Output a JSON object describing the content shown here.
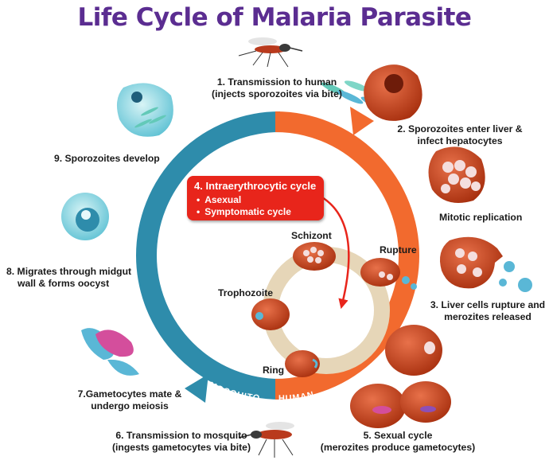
{
  "title": "Life Cycle of Malaria Parasite",
  "ring_labels": {
    "mosquito_top": "MOSQUITO",
    "human_top": "HUMAN",
    "mosquito_bottom": "MOSQUITO",
    "human_bottom": "HUMAN"
  },
  "steps": {
    "s1": {
      "line1": "1. Transmission to human",
      "line2": "(injects sporozoites via bite)"
    },
    "s2": {
      "line1": "2. Sporozoites enter liver &",
      "line2": "infect hepatocytes"
    },
    "mitotic": "Mitotic replication",
    "s3": {
      "line1": "3. Liver cells rupture and",
      "line2": "merozites released"
    },
    "s5": {
      "line1": "5. Sexual cycle",
      "line2": "(merozites produce gametocytes)"
    },
    "s6": {
      "line1": "6. Transmission to mosquito",
      "line2": "(ingests gametocytes via bite)"
    },
    "s7": {
      "line1": "7.Gametocytes mate &",
      "line2": "undergo meiosis"
    },
    "s8": {
      "line1": "8. Migrates through midgut",
      "line2": "wall & forms oocyst"
    },
    "s9": "9. Sporozoites develop"
  },
  "intraerythrocytic": {
    "heading": "4. Intraerythrocytic cycle",
    "bullets": [
      "Asexual",
      "Symptomatic cycle"
    ]
  },
  "inner_stages": {
    "schizont": "Schizont",
    "rupture": "Rupture",
    "trophozoite": "Trophozoite",
    "ring": "Ring"
  },
  "colors": {
    "title": "#5b2d91",
    "mosquito_arc": "#2e8cab",
    "human_arc": "#f26a2e",
    "cycle_box": "#e8251b",
    "rbc": "#c4401f"
  }
}
